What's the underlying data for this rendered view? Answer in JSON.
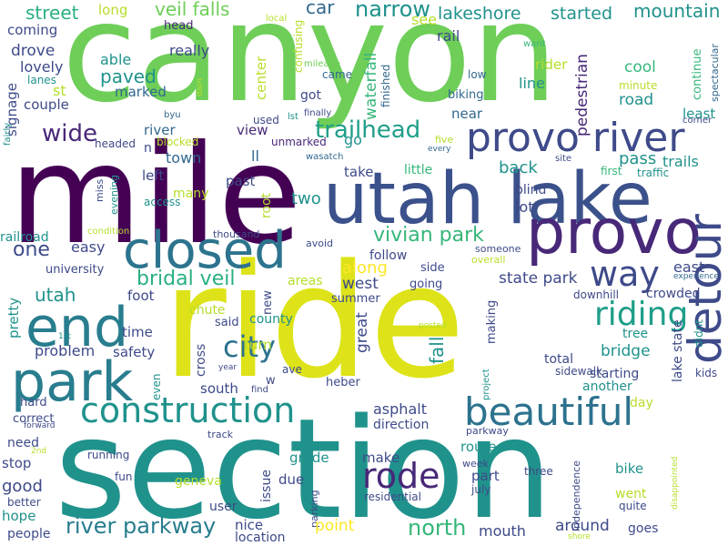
{
  "background": "#ffffff",
  "palette": [
    "#440154",
    "#482878",
    "#3e4a89",
    "#31688e",
    "#26828e",
    "#1f9e89",
    "#35b779",
    "#6ece58",
    "#b5de2b",
    "#fde725"
  ],
  "words": [
    {
      "text": "canyon",
      "color": "#6ece58"
    },
    {
      "text": "mile",
      "color": "#440154"
    },
    {
      "text": "ride",
      "color": "#dde318"
    },
    {
      "text": "section",
      "color": "#20928c"
    },
    {
      "text": "utah lake",
      "color": "#3b518b"
    },
    {
      "text": "provo",
      "color": "#482878"
    },
    {
      "text": "provo river",
      "color": "#3e4a89"
    },
    {
      "text": "closed",
      "color": "#2c738e"
    },
    {
      "text": "end",
      "color": "#287d8e"
    },
    {
      "text": "park",
      "color": "#287d8e"
    },
    {
      "text": "detour",
      "color": "#3e4a89"
    },
    {
      "text": "construction",
      "color": "#20928c"
    },
    {
      "text": "beautiful",
      "color": "#2c728e"
    },
    {
      "text": "way",
      "color": "#3e4a89"
    },
    {
      "text": "riding",
      "color": "#1f9e89"
    },
    {
      "text": "city",
      "color": "#2c728e"
    },
    {
      "text": "rode",
      "color": "#482878"
    },
    {
      "text": "river parkway",
      "color": "#287d8e"
    },
    {
      "text": "north",
      "color": "#35b779"
    },
    {
      "text": "vivian park",
      "color": "#35b779"
    },
    {
      "text": "trailhead",
      "color": "#1f9e89"
    },
    {
      "text": "bridal veil",
      "color": "#2ab07f"
    },
    {
      "text": "narrow",
      "color": "#20928c"
    },
    {
      "text": "mountain",
      "color": "#20928c"
    },
    {
      "text": "lakeshore",
      "color": "#20928c"
    },
    {
      "text": "started",
      "color": "#20928c"
    },
    {
      "text": "veil falls",
      "color": "#6ece58"
    },
    {
      "text": "street",
      "color": "#2ab07f"
    },
    {
      "text": "car",
      "color": "#31688e"
    },
    {
      "text": "long",
      "color": "#b5de2b"
    },
    {
      "text": "head",
      "color": "#482878"
    },
    {
      "text": "local",
      "color": "#b5de2b"
    },
    {
      "text": "see",
      "color": "#b5de2b"
    },
    {
      "text": "coming",
      "color": "#3e4a89"
    },
    {
      "text": "drove",
      "color": "#3e4a89"
    },
    {
      "text": "lovely",
      "color": "#3e4a89"
    },
    {
      "text": "lanes",
      "color": "#20928c"
    },
    {
      "text": "st",
      "color": "#b5de2b"
    },
    {
      "text": "couple",
      "color": "#3e4a89"
    },
    {
      "text": "signage",
      "color": "#3e4a89"
    },
    {
      "text": "wide",
      "color": "#482878"
    },
    {
      "text": "able",
      "color": "#20928c"
    },
    {
      "text": "paved",
      "color": "#20928c"
    },
    {
      "text": "marked",
      "color": "#31688e"
    },
    {
      "text": "really",
      "color": "#3e4a89"
    },
    {
      "text": "dam",
      "color": "#b5de2b"
    },
    {
      "text": "confusing",
      "color": "#b5de2b"
    },
    {
      "text": "center",
      "color": "#b5de2b"
    },
    {
      "text": "mileage",
      "color": "#6ece58"
    },
    {
      "text": "came",
      "color": "#31688e"
    },
    {
      "text": "waterfall",
      "color": "#35b779"
    },
    {
      "text": "finished",
      "color": "#31688e"
    },
    {
      "text": "rail",
      "color": "#3e4a89"
    },
    {
      "text": "want",
      "color": "#35b779"
    },
    {
      "text": "rider",
      "color": "#b5de2b"
    },
    {
      "text": "pedestrian",
      "color": "#482878"
    },
    {
      "text": "cool",
      "color": "#35b779"
    },
    {
      "text": "low",
      "color": "#31688e"
    },
    {
      "text": "line",
      "color": "#20928c"
    },
    {
      "text": "minute",
      "color": "#b5de2b"
    },
    {
      "text": "continue",
      "color": "#35b779"
    },
    {
      "text": "spectacular",
      "color": "#31688e"
    },
    {
      "text": "road",
      "color": "#20928c"
    },
    {
      "text": "least",
      "color": "#20928c"
    },
    {
      "text": "corner",
      "color": "#3e4a89"
    },
    {
      "text": "biking",
      "color": "#31688e"
    },
    {
      "text": "got",
      "color": "#3e4a89"
    },
    {
      "text": "finally",
      "color": "#3e4a89"
    },
    {
      "text": "near",
      "color": "#31688e"
    },
    {
      "text": "byu",
      "color": "#31688e"
    },
    {
      "text": "used",
      "color": "#3e4a89"
    },
    {
      "text": "lst",
      "color": "#20928c"
    },
    {
      "text": "fairly",
      "color": "#20928c"
    },
    {
      "text": "headed",
      "color": "#3e4a89"
    },
    {
      "text": "river",
      "color": "#31688e"
    },
    {
      "text": "blocked",
      "color": "#b5de2b"
    },
    {
      "text": "view",
      "color": "#482878"
    },
    {
      "text": "unmarked",
      "color": "#482878"
    },
    {
      "text": "go",
      "color": "#20928c"
    },
    {
      "text": "five",
      "color": "#b5de2b"
    },
    {
      "text": "every",
      "color": "#31688e"
    },
    {
      "text": "n",
      "color": "#3e4a89"
    },
    {
      "text": "wasatch",
      "color": "#31688e"
    },
    {
      "text": "town",
      "color": "#31688e"
    },
    {
      "text": "ll",
      "color": "#31688e"
    },
    {
      "text": "little",
      "color": "#35b779"
    },
    {
      "text": "site",
      "color": "#3e4a89"
    },
    {
      "text": "first",
      "color": "#35b779"
    },
    {
      "text": "traffic",
      "color": "#20928c"
    },
    {
      "text": "pass",
      "color": "#20928c"
    },
    {
      "text": "trails",
      "color": "#20928c"
    },
    {
      "text": "miss",
      "color": "#3e4a89"
    },
    {
      "text": "evening",
      "color": "#20928c"
    },
    {
      "text": "left",
      "color": "#3e4a89"
    },
    {
      "text": "past",
      "color": "#3e4a89"
    },
    {
      "text": "take",
      "color": "#3e4a89"
    },
    {
      "text": "back",
      "color": "#20928c"
    },
    {
      "text": "blind",
      "color": "#3e4a89"
    },
    {
      "text": "access",
      "color": "#20928c"
    },
    {
      "text": "many",
      "color": "#b5de2b"
    },
    {
      "text": "root",
      "color": "#b5de2b"
    },
    {
      "text": "two",
      "color": "#20928c"
    },
    {
      "text": "lot",
      "color": "#3e4a89"
    },
    {
      "text": "condition",
      "color": "#b5de2b"
    },
    {
      "text": "thousand",
      "color": "#3e4a89"
    },
    {
      "text": "railroad",
      "color": "#20928c"
    },
    {
      "text": "one",
      "color": "#3e4a89"
    },
    {
      "text": "easy",
      "color": "#3e4a89"
    },
    {
      "text": "university",
      "color": "#3e4a89"
    },
    {
      "text": "avoid",
      "color": "#3e4a89"
    },
    {
      "text": "follow",
      "color": "#3e4a89"
    },
    {
      "text": "someone",
      "color": "#3e4a89"
    },
    {
      "text": "overall",
      "color": "#b5de2b"
    },
    {
      "text": "along",
      "color": "#fde725"
    },
    {
      "text": "side",
      "color": "#3e4a89"
    },
    {
      "text": "east",
      "color": "#3e4a89"
    },
    {
      "text": "experience",
      "color": "#31688e"
    },
    {
      "text": "utah",
      "color": "#20928c"
    },
    {
      "text": "areas",
      "color": "#b5de2b"
    },
    {
      "text": "west",
      "color": "#3e4a89"
    },
    {
      "text": "going",
      "color": "#3e4a89"
    },
    {
      "text": "state park",
      "color": "#3e4a89"
    },
    {
      "text": "downhill",
      "color": "#3e4a89"
    },
    {
      "text": "crowded",
      "color": "#3e4a89"
    },
    {
      "text": "foot",
      "color": "#3e4a89"
    },
    {
      "text": "summer",
      "color": "#3e4a89"
    },
    {
      "text": "new",
      "color": "#3e4a89"
    },
    {
      "text": "chute",
      "color": "#b5de2b"
    },
    {
      "text": "county",
      "color": "#20928c"
    },
    {
      "text": "pretty",
      "color": "#20928c"
    },
    {
      "text": "tree",
      "color": "#20928c"
    },
    {
      "text": "said",
      "color": "#3e4a89"
    },
    {
      "text": "making",
      "color": "#3e4a89"
    },
    {
      "text": "time",
      "color": "#3e4a89"
    },
    {
      "text": "great",
      "color": "#3e4a89"
    },
    {
      "text": "posted",
      "color": "#b5de2b"
    },
    {
      "text": "problem",
      "color": "#3e4a89"
    },
    {
      "text": "safety",
      "color": "#3e4a89"
    },
    {
      "text": "cross",
      "color": "#3e4a89"
    },
    {
      "text": "turn",
      "color": "#b5de2b"
    },
    {
      "text": "fall",
      "color": "#20928c"
    },
    {
      "text": "bridge",
      "color": "#20928c"
    },
    {
      "text": "lake state",
      "color": "#3e4a89"
    },
    {
      "text": "didnt",
      "color": "#20928c"
    },
    {
      "text": "total",
      "color": "#3e4a89"
    },
    {
      "text": "1st",
      "color": "#20928c"
    },
    {
      "text": "year",
      "color": "#3e4a89"
    },
    {
      "text": "ave",
      "color": "#3e4a89"
    },
    {
      "text": "starting",
      "color": "#3e4a89"
    },
    {
      "text": "sidewalk",
      "color": "#3e4a89"
    },
    {
      "text": "kids",
      "color": "#3e4a89"
    },
    {
      "text": "south",
      "color": "#3e4a89"
    },
    {
      "text": "w",
      "color": "#3e4a89"
    },
    {
      "text": "heber",
      "color": "#3e4a89"
    },
    {
      "text": "project",
      "color": "#20928c"
    },
    {
      "text": "another",
      "color": "#20928c"
    },
    {
      "text": "even",
      "color": "#20928c"
    },
    {
      "text": "find",
      "color": "#3e4a89"
    },
    {
      "text": "day",
      "color": "#b5de2b"
    },
    {
      "text": "hard",
      "color": "#3e4a89"
    },
    {
      "text": "correct",
      "color": "#3e4a89"
    },
    {
      "text": "asphalt",
      "color": "#3e4a89"
    },
    {
      "text": "direction",
      "color": "#3e4a89"
    },
    {
      "text": "need",
      "color": "#3e4a89"
    },
    {
      "text": "forward",
      "color": "#3e4a89"
    },
    {
      "text": "track",
      "color": "#3e4a89"
    },
    {
      "text": "parkway",
      "color": "#3e4a89"
    },
    {
      "text": "2nd",
      "color": "#b5de2b"
    },
    {
      "text": "stop",
      "color": "#3e4a89"
    },
    {
      "text": "running",
      "color": "#3e4a89"
    },
    {
      "text": "grade",
      "color": "#20928c"
    },
    {
      "text": "make",
      "color": "#3e4a89"
    },
    {
      "text": "route",
      "color": "#20928c"
    },
    {
      "text": "disappointed",
      "color": "#b5de2b"
    },
    {
      "text": "good",
      "color": "#3e4a89"
    },
    {
      "text": "week",
      "color": "#3e4a89"
    },
    {
      "text": "bike",
      "color": "#20928c"
    },
    {
      "text": "issue",
      "color": "#3e4a89"
    },
    {
      "text": "part",
      "color": "#3e4a89"
    },
    {
      "text": "fun",
      "color": "#3e4a89"
    },
    {
      "text": "geneva",
      "color": "#b5de2b"
    },
    {
      "text": "due",
      "color": "#3e4a89"
    },
    {
      "text": "three",
      "color": "#3e4a89"
    },
    {
      "text": "july",
      "color": "#3e4a89"
    },
    {
      "text": "independence",
      "color": "#3e4a89"
    },
    {
      "text": "went",
      "color": "#b5de2b"
    },
    {
      "text": "better",
      "color": "#3e4a89"
    },
    {
      "text": "parking",
      "color": "#3e4a89"
    },
    {
      "text": "residential",
      "color": "#3e4a89"
    },
    {
      "text": "quite",
      "color": "#3e4a89"
    },
    {
      "text": "hope",
      "color": "#20928c"
    },
    {
      "text": "user",
      "color": "#3e4a89"
    },
    {
      "text": "nice",
      "color": "#3e4a89"
    },
    {
      "text": "point",
      "color": "#fde725"
    },
    {
      "text": "mouth",
      "color": "#3e4a89"
    },
    {
      "text": "around",
      "color": "#3e4a89"
    },
    {
      "text": "goes",
      "color": "#3e4a89"
    },
    {
      "text": "people",
      "color": "#3e4a89"
    },
    {
      "text": "location",
      "color": "#3e4a89"
    },
    {
      "text": "shore",
      "color": "#b5de2b"
    }
  ]
}
